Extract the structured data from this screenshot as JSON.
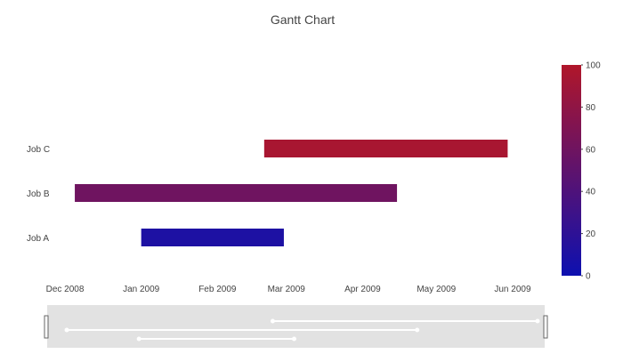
{
  "chart_data": {
    "type": "gantt",
    "title": "Gantt Chart",
    "x_axis": {
      "type": "date",
      "range": [
        "2008-12-01",
        "2009-06-05"
      ],
      "ticks": [
        {
          "date": "2008-12-01",
          "label": "Dec 2008"
        },
        {
          "date": "2009-01-01",
          "label": "Jan 2009"
        },
        {
          "date": "2009-02-01",
          "label": "Feb 2009"
        },
        {
          "date": "2009-03-01",
          "label": "Mar 2009"
        },
        {
          "date": "2009-04-01",
          "label": "Apr 2009"
        },
        {
          "date": "2009-05-01",
          "label": "May 2009"
        },
        {
          "date": "2009-06-01",
          "label": "Jun 2009"
        }
      ]
    },
    "categories": [
      "Job A",
      "Job B",
      "Job C"
    ],
    "tasks": [
      {
        "name": "Job A",
        "start": "2009-01-01",
        "finish": "2009-02-28",
        "complete": 10
      },
      {
        "name": "Job B",
        "start": "2008-12-05",
        "finish": "2009-04-15",
        "complete": 60
      },
      {
        "name": "Job C",
        "start": "2009-02-20",
        "finish": "2009-05-30",
        "complete": 95
      }
    ],
    "colorscale": {
      "min": 0,
      "max": 100,
      "low_color": "#0d10b0",
      "high_color": "#b0162a",
      "ticks": [
        0,
        20,
        40,
        60,
        80,
        100
      ]
    },
    "rangeslider": true
  }
}
